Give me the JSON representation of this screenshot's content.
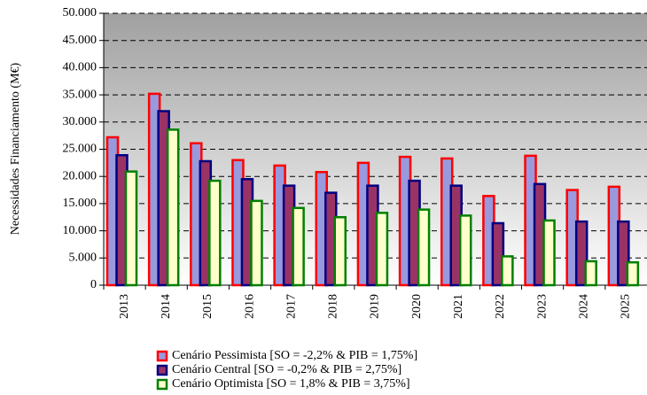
{
  "chart_data": {
    "type": "bar",
    "ylabel": "Necessidades Financiamento (M€)",
    "categories": [
      "2013",
      "2014",
      "2015",
      "2016",
      "2017",
      "2018",
      "2019",
      "2020",
      "2021",
      "2022",
      "2023",
      "2024",
      "2025"
    ],
    "series": [
      {
        "name": "Cenário Pessimista [SO = -2,2% & PIB = 1,75%]",
        "color": "#9999dd",
        "edgecolor": "#ff0000",
        "values": [
          27200,
          35200,
          26100,
          23000,
          22000,
          20800,
          22500,
          23600,
          23300,
          16400,
          23800,
          17500,
          18100
        ]
      },
      {
        "name": "Cenário Central [SO = -0,2% & PIB = 2,75%]",
        "color": "#993366",
        "edgecolor": "#000080",
        "values": [
          23900,
          32000,
          22800,
          19500,
          18300,
          17000,
          18300,
          19200,
          18300,
          11400,
          18600,
          11700,
          11700
        ]
      },
      {
        "name": "Cenário Optimista [SO = 1,8% & PIB = 3,75%]",
        "color": "#ffffcc",
        "edgecolor": "#008000",
        "values": [
          20900,
          28600,
          19200,
          15500,
          14200,
          12500,
          13300,
          13900,
          12800,
          5300,
          11900,
          4400,
          4200
        ]
      }
    ],
    "ylim": [
      0,
      50000
    ],
    "yticks": [
      0,
      {
        "value": 5000,
        "label": "5.000"
      },
      {
        "value": 10000,
        "label": "10.000"
      },
      {
        "value": 15000,
        "label": "15.000"
      },
      {
        "value": 20000,
        "label": "20.000"
      },
      {
        "value": 25000,
        "label": "25.000"
      },
      {
        "value": 30000,
        "label": "30.000"
      },
      {
        "value": 35000,
        "label": "35.000"
      },
      {
        "value": 40000,
        "label": "40.000"
      },
      {
        "value": 45000,
        "label": "45.000"
      },
      {
        "value": 50000,
        "label": "50.000"
      }
    ],
    "grid": true
  }
}
